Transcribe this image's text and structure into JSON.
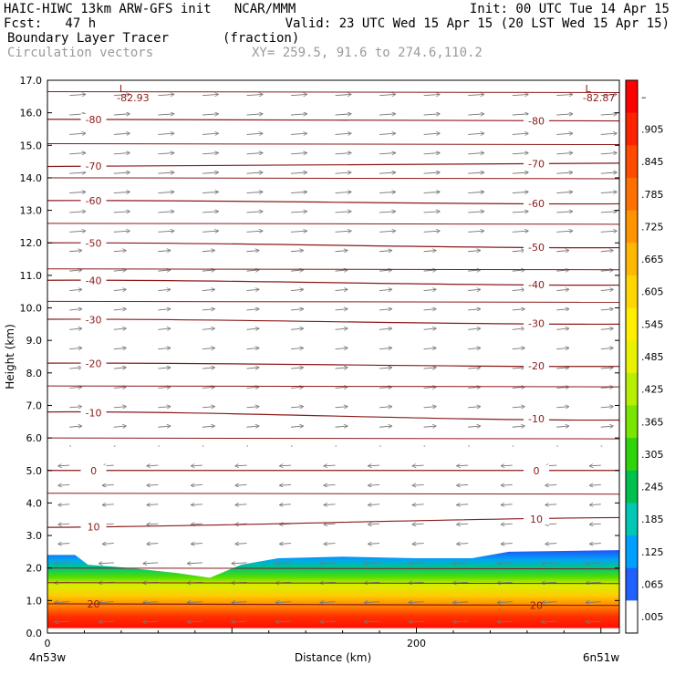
{
  "header": {
    "model": "HAIC-HIWC 13km ARW-GFS init   NCAR/MMM",
    "init": "Init: 00 UTC Tue 14 Apr 15",
    "fcst": "Fcst:   47 h",
    "valid": "Valid: 23 UTC Wed 15 Apr 15 (20 LST Wed 15 Apr 15)",
    "field": "Boundary Layer Tracer       (fraction)",
    "vectors": "Circulation vectors",
    "xy": "XY= 259.5, 91.6 to 274.6,110.2"
  },
  "chart_data": {
    "type": "heatmap",
    "xlabel": "Distance (km)",
    "ylabel": "Height (km)",
    "xlim": [
      0,
      310
    ],
    "ylim": [
      0,
      17
    ],
    "x_tick_values": [
      0,
      200
    ],
    "x_ticks": [
      "0",
      "200"
    ],
    "x_start_label": "4n53w",
    "x_end_label": "6n51w",
    "y_ticks": [
      "0.0",
      "1.0",
      "2.0",
      "3.0",
      "4.0",
      "5.0",
      "6.0",
      "7.0",
      "8.0",
      "9.0",
      "10.0",
      "11.0",
      "12.0",
      "13.0",
      "14.0",
      "15.0",
      "16.0",
      "17.0"
    ],
    "colorbar_labels": [
      "–",
      ".905",
      ".845",
      ".785",
      ".725",
      ".665",
      ".605",
      ".545",
      ".485",
      ".425",
      ".365",
      ".305",
      ".245",
      ".185",
      ".125",
      ".065",
      ".005"
    ],
    "colorbar_colors": [
      "#ff0000",
      "#ff2200",
      "#ff4a00",
      "#ff7000",
      "#ff9400",
      "#ffb800",
      "#ffd600",
      "#ffee00",
      "#e8f200",
      "#b8ef00",
      "#78e600",
      "#2fd40a",
      "#00c050",
      "#00c8b4",
      "#00a0ff",
      "#2060ff",
      "#ffffff"
    ],
    "tracer_top_km": [
      [
        0,
        2.4
      ],
      [
        15,
        2.4
      ],
      [
        22,
        2.1
      ],
      [
        45,
        2.0
      ],
      [
        70,
        1.85
      ],
      [
        88,
        1.7
      ],
      [
        105,
        2.1
      ],
      [
        125,
        2.3
      ],
      [
        160,
        2.35
      ],
      [
        200,
        2.3
      ],
      [
        230,
        2.3
      ],
      [
        250,
        2.5
      ],
      [
        310,
        2.55
      ]
    ],
    "isotherms": [
      {
        "value": -80,
        "label": "-80",
        "heights_km": [
          15.8,
          15.75
        ]
      },
      {
        "value": -70,
        "label": "-70",
        "heights_km": [
          14.35,
          14.45
        ]
      },
      {
        "value": -60,
        "label": "-60",
        "heights_km": [
          13.3,
          13.2
        ]
      },
      {
        "value": -50,
        "label": "-50",
        "heights_km": [
          12.0,
          11.85
        ]
      },
      {
        "value": -40,
        "label": "-40",
        "heights_km": [
          10.85,
          10.7
        ]
      },
      {
        "value": -30,
        "label": "-30",
        "heights_km": [
          9.65,
          9.5
        ]
      },
      {
        "value": -20,
        "label": "-20",
        "heights_km": [
          8.3,
          8.2
        ]
      },
      {
        "value": -10,
        "label": "-10",
        "heights_km": [
          6.8,
          6.55
        ]
      },
      {
        "value": 0,
        "label": "0",
        "heights_km": [
          5.0,
          5.0
        ]
      },
      {
        "value": 10,
        "label": "10",
        "heights_km": [
          3.25,
          3.55
        ]
      },
      {
        "value": 20,
        "label": "20",
        "heights_km": [
          0.9,
          0.85
        ]
      }
    ],
    "extra_lines_km": [
      16.65,
      15.05,
      14.0,
      12.6,
      11.2,
      10.2,
      7.6,
      6.0,
      4.3,
      2.0,
      1.55
    ],
    "minima": [
      {
        "x": 40.5,
        "label": "L",
        "value": "-82.93"
      },
      {
        "x": 293,
        "label": "L",
        "value": "-82.87"
      }
    ]
  }
}
